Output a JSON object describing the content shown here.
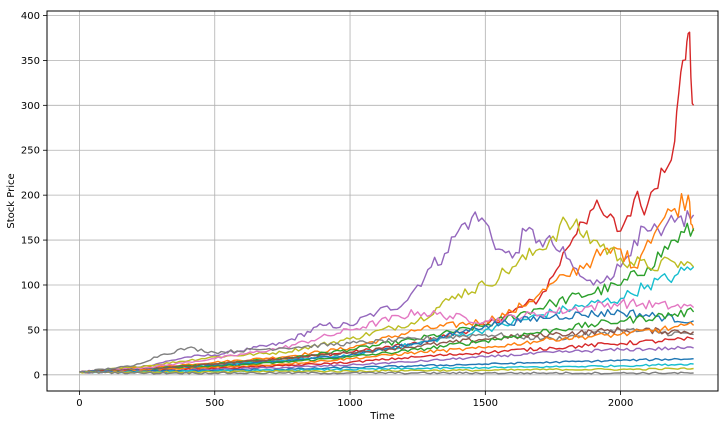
{
  "chart_data": {
    "type": "line",
    "title": "",
    "xlabel": "Time",
    "ylabel": "Stock Price",
    "xlim": [
      -120,
      2360
    ],
    "ylim": [
      -18,
      405
    ],
    "xticks": [
      0,
      500,
      1000,
      1500,
      2000
    ],
    "yticks": [
      0,
      50,
      100,
      150,
      200,
      250,
      300,
      350,
      400
    ],
    "grid": true,
    "legend": "none",
    "palette": [
      "#1f77b4",
      "#ff7f0e",
      "#2ca02c",
      "#d62728",
      "#9467bd",
      "#8c564b",
      "#e377c2",
      "#7f7f7f",
      "#bcbd22",
      "#17becf"
    ],
    "series": [
      {
        "color": "#d62728",
        "x": [
          0,
          250,
          500,
          750,
          1000,
          1250,
          1500,
          1600,
          1700,
          1750,
          1800,
          1850,
          1900,
          1950,
          2000,
          2050,
          2100,
          2150,
          2200,
          2230,
          2250,
          2270
        ],
        "y": [
          3,
          7,
          12,
          18,
          25,
          35,
          55,
          70,
          85,
          110,
          140,
          170,
          185,
          175,
          160,
          195,
          190,
          230,
          260,
          350,
          380,
          300
        ]
      },
      {
        "color": "#9467bd",
        "x": [
          0,
          250,
          400,
          500,
          750,
          900,
          1000,
          1100,
          1200,
          1250,
          1300,
          1350,
          1400,
          1450,
          1500,
          1550,
          1600,
          1650,
          1700,
          1750,
          1800,
          1850,
          1900,
          1950,
          2000,
          2050,
          2100,
          2150,
          2200,
          2270
        ],
        "y": [
          3,
          10,
          20,
          22,
          35,
          55,
          55,
          70,
          80,
          100,
          120,
          135,
          160,
          175,
          170,
          140,
          130,
          160,
          150,
          145,
          130,
          110,
          100,
          110,
          120,
          150,
          160,
          155,
          170,
          178
        ]
      },
      {
        "color": "#ff7f0e",
        "x": [
          0,
          250,
          500,
          750,
          1000,
          1250,
          1500,
          1600,
          1700,
          1800,
          1900,
          2000,
          2050,
          2100,
          2150,
          2200,
          2250,
          2270
        ],
        "y": [
          3,
          8,
          14,
          20,
          30,
          50,
          60,
          70,
          90,
          110,
          130,
          140,
          120,
          150,
          170,
          185,
          200,
          160
        ]
      },
      {
        "color": "#2ca02c",
        "x": [
          0,
          250,
          500,
          750,
          1000,
          1250,
          1500,
          1750,
          2000,
          2100,
          2200,
          2270
        ],
        "y": [
          3,
          7,
          12,
          18,
          28,
          40,
          55,
          80,
          100,
          120,
          150,
          163
        ]
      },
      {
        "color": "#bcbd22",
        "x": [
          0,
          250,
          500,
          750,
          1000,
          1250,
          1400,
          1500,
          1600,
          1700,
          1800,
          1900,
          2000,
          2100,
          2200,
          2270
        ],
        "y": [
          3,
          10,
          20,
          25,
          40,
          60,
          90,
          100,
          120,
          140,
          170,
          150,
          130,
          120,
          125,
          120
        ]
      },
      {
        "color": "#17becf",
        "x": [
          0,
          250,
          500,
          750,
          1000,
          1250,
          1500,
          1750,
          2000,
          2100,
          2200,
          2270
        ],
        "y": [
          3,
          6,
          10,
          16,
          22,
          35,
          50,
          70,
          85,
          100,
          110,
          120
        ]
      },
      {
        "color": "#e377c2",
        "x": [
          0,
          250,
          500,
          750,
          1000,
          1250,
          1500,
          1750,
          2000,
          2270
        ],
        "y": [
          3,
          8,
          18,
          30,
          50,
          70,
          60,
          70,
          80,
          75
        ]
      },
      {
        "color": "#7f7f7f",
        "x": [
          0,
          200,
          300,
          400,
          500,
          750,
          1000,
          1250,
          1500,
          1750,
          2000,
          2270
        ],
        "y": [
          3,
          10,
          22,
          30,
          25,
          30,
          35,
          40,
          45,
          40,
          50,
          45
        ]
      },
      {
        "color": "#1f77b4",
        "x": [
          0,
          250,
          500,
          750,
          1000,
          1250,
          1500,
          1750,
          2000,
          2270
        ],
        "y": [
          3,
          6,
          10,
          15,
          22,
          35,
          55,
          65,
          70,
          60
        ]
      },
      {
        "color": "#8c564b",
        "x": [
          0,
          250,
          500,
          750,
          1000,
          1250,
          1500,
          1750,
          2000,
          2270
        ],
        "y": [
          3,
          6,
          12,
          18,
          25,
          32,
          40,
          45,
          50,
          48
        ]
      },
      {
        "color": "#2ca02c",
        "x": [
          0,
          250,
          500,
          750,
          1000,
          1250,
          1500,
          1750,
          2000,
          2270
        ],
        "y": [
          3,
          5,
          9,
          14,
          20,
          28,
          38,
          50,
          60,
          70
        ]
      },
      {
        "color": "#ff7f0e",
        "x": [
          0,
          250,
          500,
          750,
          1000,
          1250,
          1500,
          1750,
          2000,
          2270
        ],
        "y": [
          3,
          5,
          8,
          12,
          18,
          25,
          30,
          40,
          45,
          55
        ]
      },
      {
        "color": "#d62728",
        "x": [
          0,
          250,
          500,
          750,
          1000,
          1250,
          1500,
          1750,
          2000,
          2270
        ],
        "y": [
          3,
          4,
          7,
          10,
          14,
          20,
          25,
          30,
          35,
          40
        ]
      },
      {
        "color": "#9467bd",
        "x": [
          0,
          250,
          500,
          750,
          1000,
          1250,
          1500,
          1750,
          2000,
          2270
        ],
        "y": [
          3,
          4,
          6,
          8,
          11,
          15,
          20,
          25,
          28,
          30
        ]
      },
      {
        "color": "#1f77b4",
        "x": [
          0,
          250,
          500,
          750,
          1000,
          1250,
          1500,
          1750,
          2000,
          2270
        ],
        "y": [
          3,
          4,
          5,
          6,
          8,
          10,
          12,
          14,
          16,
          18
        ]
      },
      {
        "color": "#17becf",
        "x": [
          0,
          250,
          500,
          750,
          1000,
          1250,
          1500,
          1750,
          2000,
          2270
        ],
        "y": [
          3,
          3,
          4,
          5,
          6,
          7,
          8,
          9,
          10,
          12
        ]
      },
      {
        "color": "#bcbd22",
        "x": [
          0,
          250,
          500,
          750,
          1000,
          1250,
          1500,
          1750,
          2000,
          2270
        ],
        "y": [
          3,
          3,
          3,
          4,
          4,
          5,
          5,
          6,
          6,
          7
        ]
      },
      {
        "color": "#7f7f7f",
        "x": [
          0,
          250,
          500,
          750,
          1000,
          1250,
          1500,
          1750,
          2000,
          2270
        ],
        "y": [
          3,
          2,
          2,
          2,
          2,
          2,
          2,
          2,
          2,
          2
        ]
      }
    ]
  }
}
